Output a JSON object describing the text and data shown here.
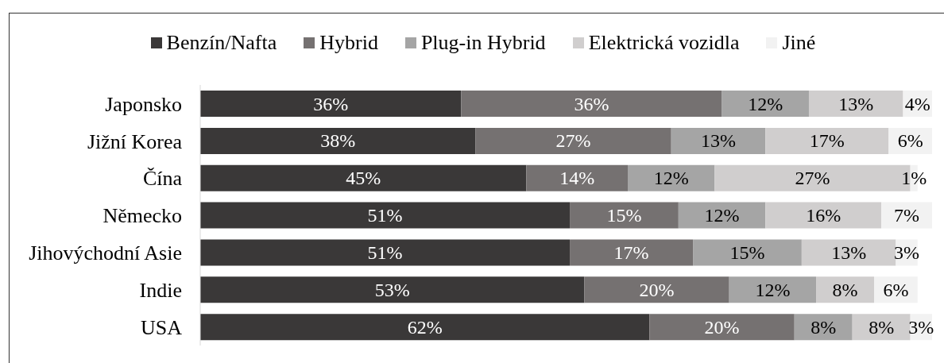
{
  "chart_data": {
    "type": "bar",
    "orientation": "horizontal",
    "stacked": true,
    "categories": [
      "Japonsko",
      "Jižní Korea",
      "Čína",
      "Německo",
      "Jihovýchodní Asie",
      "Indie",
      "USA"
    ],
    "series": [
      {
        "name": "Benzín/Nafta",
        "color": "#3a3838",
        "values": [
          36,
          38,
          45,
          51,
          51,
          53,
          62
        ],
        "value_labels": [
          "36%",
          "38%",
          "45%",
          "51%",
          "51%",
          "53%",
          "62%"
        ]
      },
      {
        "name": "Hybrid",
        "color": "#757171",
        "values": [
          36,
          27,
          14,
          15,
          17,
          20,
          20
        ],
        "value_labels": [
          "36%",
          "27%",
          "14%",
          "15%",
          "17%",
          "20%",
          "20%"
        ]
      },
      {
        "name": "Plug-in Hybrid",
        "color": "#a5a5a5",
        "values": [
          12,
          13,
          12,
          12,
          15,
          12,
          8
        ],
        "value_labels": [
          "12%",
          "13%",
          "12%",
          "12%",
          "15%",
          "12%",
          "8%"
        ]
      },
      {
        "name": "Elektrická vozidla",
        "color": "#d0cece",
        "values": [
          13,
          17,
          27,
          16,
          13,
          8,
          8
        ],
        "value_labels": [
          "13%",
          "17%",
          "27%",
          "16%",
          "13%",
          "8%",
          "8%"
        ]
      },
      {
        "name": "Jiné",
        "color": "#f2f2f2",
        "values": [
          4,
          6,
          1,
          7,
          3,
          6,
          3
        ],
        "value_labels": [
          "4%",
          "6%",
          "1%",
          "7%",
          "3%",
          "6%",
          "3%"
        ]
      }
    ],
    "legend": "top",
    "tick_labels": "y"
  }
}
